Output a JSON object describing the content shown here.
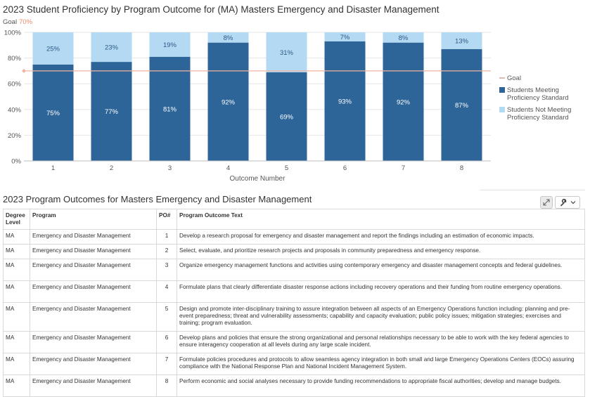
{
  "chart_title": "2023 Student Proficiency by Program Outcome for (MA) Masters Emergency and Disaster Management",
  "goal_label": "Goal",
  "goal_value_text": "70%",
  "chart_data": {
    "type": "bar",
    "stacked": true,
    "title": "2023 Student Proficiency by Program Outcome for (MA) Masters Emergency and Disaster Management",
    "xlabel": "Outcome Number",
    "ylabel": "",
    "categories": [
      "1",
      "2",
      "3",
      "4",
      "5",
      "6",
      "7",
      "8"
    ],
    "ylim": [
      0,
      100
    ],
    "yticks": [
      "0%",
      "20%",
      "40%",
      "60%",
      "80%",
      "100%"
    ],
    "goal": 70,
    "series": [
      {
        "name": "Students Meeting Proficiency Standard",
        "values": [
          75,
          77,
          81,
          92,
          69,
          93,
          92,
          87
        ],
        "labels": [
          "75%",
          "77%",
          "81%",
          "92%",
          "69%",
          "93%",
          "92%",
          "87%"
        ],
        "color": "#2e6599"
      },
      {
        "name": "Students Not Meeting Proficiency Standard",
        "values": [
          25,
          23,
          19,
          8,
          31,
          7,
          8,
          13
        ],
        "labels": [
          "25%",
          "23%",
          "19%",
          "8%",
          "31%",
          "7%",
          "8%",
          "13%"
        ],
        "color": "#b3d9f3"
      }
    ],
    "legend": {
      "position": "right",
      "items": [
        {
          "lines": [
            "Goal"
          ],
          "kind": "line",
          "color": "#c9a89b"
        },
        {
          "lines": [
            "Students Meeting",
            "Proficiency Standard"
          ],
          "kind": "square",
          "color": "#2e6599"
        },
        {
          "lines": [
            "Students Not Meeting",
            "Proficiency Standard"
          ],
          "kind": "square",
          "color": "#b3d9f3"
        }
      ]
    },
    "goal_line_color": "#f0b3a0",
    "grid": true
  },
  "table": {
    "title": "2023 Program Outcomes for Masters Emergency and Disaster Management",
    "headers": {
      "degree": "Degree Level",
      "program": "Program",
      "po": "PO#",
      "text": "Program Outcome Text"
    },
    "rows": [
      {
        "degree": "MA",
        "program": "Emergency and Disaster Management",
        "po": "1",
        "text": "Develop a research proposal for emergency and disaster management and report the findings including an estimation of economic impacts."
      },
      {
        "degree": "MA",
        "program": "Emergency and Disaster Management",
        "po": "2",
        "text": "Select, evaluate, and prioritize research projects and proposals in community preparedness and emergency response."
      },
      {
        "degree": "MA",
        "program": "Emergency and Disaster Management",
        "po": "3",
        "text": "Organize emergency management functions and activities using contemporary emergency and disaster management concepts and federal guidelines."
      },
      {
        "degree": "MA",
        "program": "Emergency and Disaster Management",
        "po": "4",
        "text": "Formulate plans that clearly differentiate disaster response actions including recovery operations and their funding from routine emergency operations."
      },
      {
        "degree": "MA",
        "program": "Emergency and Disaster Management",
        "po": "5",
        "text": "Design and promote inter-disciplinary training to assure integration between all aspects of an Emergency Operations function including: planning and pre-event preparedness; threat and vulnerability assessments; capability and capacity evaluation; public policy issues; mitigation strategies; exercises and training; program evaluation."
      },
      {
        "degree": "MA",
        "program": "Emergency and Disaster Management",
        "po": "6",
        "text": "Develop plans and policies that ensure the strong organizational and personal relationships necessary to be able to work with the key federal agencies to ensure interagency cooperation at all levels during any large scale incident."
      },
      {
        "degree": "MA",
        "program": "Emergency and Disaster Management",
        "po": "7",
        "text": "Formulate policies procedures and protocols to allow seamless agency integration in both small and large Emergency Operations Centers (EOCs) assuring compliance with the National Response Plan and National Incident Management System."
      },
      {
        "degree": "MA",
        "program": "Emergency and Disaster Management",
        "po": "8",
        "text": "Perform economic and social analyses necessary to provide funding recommendations to appropriate fiscal authorities; develop and manage budgets."
      }
    ]
  },
  "toolbar": {
    "expand_icon": "expand-icon",
    "wrench_icon": "wrench-icon",
    "chevron_icon": "chevron-down-icon"
  }
}
